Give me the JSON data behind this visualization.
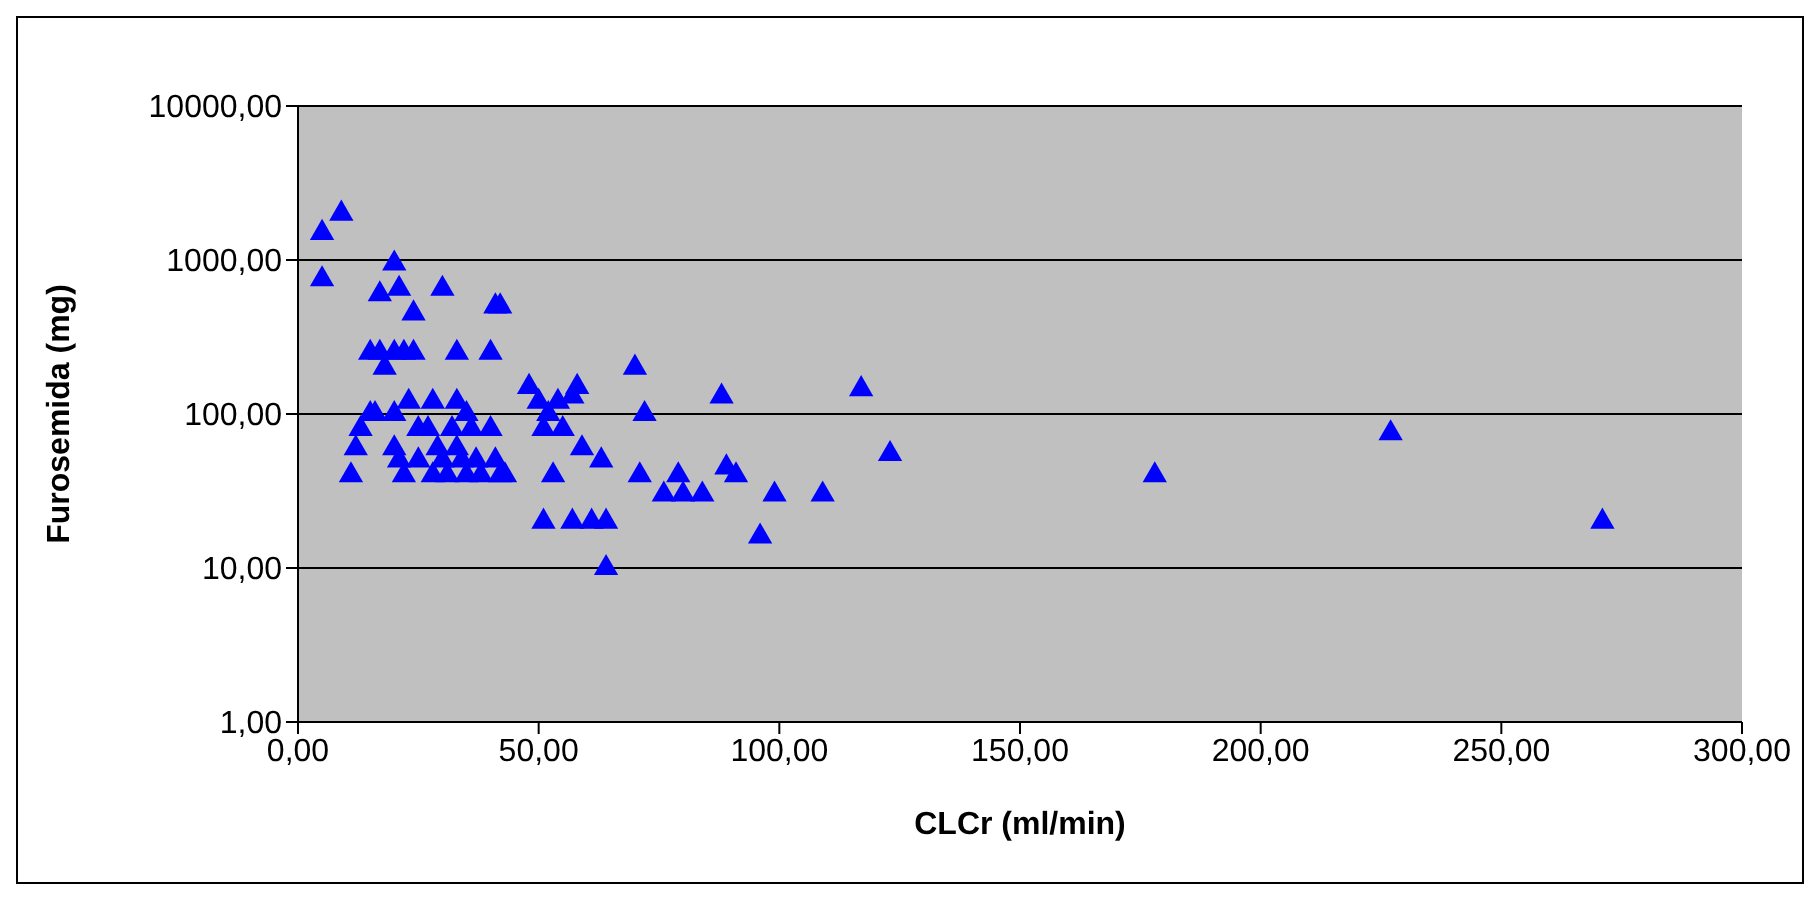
{
  "chart_data": {
    "type": "scatter",
    "xlabel": "CLCr (ml/min)",
    "ylabel": "Furosemida (mg)",
    "log": "y",
    "grid": "y",
    "marker": "triangle",
    "xlim": [
      0,
      300
    ],
    "xticks": [
      {
        "value": 0,
        "label": "0,00"
      },
      {
        "value": 50,
        "label": "50,00"
      },
      {
        "value": 100,
        "label": "100,00"
      },
      {
        "value": 150,
        "label": "150,00"
      },
      {
        "value": 200,
        "label": "200,00"
      },
      {
        "value": 250,
        "label": "250,00"
      },
      {
        "value": 300,
        "label": "300,00"
      }
    ],
    "ylim": [
      1,
      10000
    ],
    "yticks": [
      {
        "value": 1,
        "label": "1,00"
      },
      {
        "value": 10,
        "label": "10,00"
      },
      {
        "value": 100,
        "label": "100,00"
      },
      {
        "value": 1000,
        "label": "1000,00"
      },
      {
        "value": 10000,
        "label": "10000,00"
      }
    ],
    "series": [
      {
        "color": "#0000ff",
        "x": [
          5,
          5,
          9,
          20,
          21,
          17,
          30,
          24,
          42,
          41,
          15,
          17,
          18,
          20,
          22,
          24,
          33,
          40,
          15,
          13,
          12,
          11,
          16,
          20,
          23,
          28,
          33,
          35,
          20,
          21,
          22,
          25,
          27,
          29,
          30,
          31,
          32,
          33,
          34,
          35,
          36,
          37,
          38,
          40,
          42,
          41,
          43,
          28,
          25,
          48,
          50,
          52,
          54,
          55,
          51,
          57,
          58,
          53,
          59,
          51,
          57,
          61,
          64,
          63,
          64,
          70,
          72,
          71,
          76,
          79,
          80,
          84,
          88,
          89,
          91,
          96,
          99,
          109,
          117,
          123,
          178,
          227,
          271
        ],
        "values": [
          1500,
          750,
          2000,
          950,
          650,
          600,
          650,
          450,
          500,
          500,
          250,
          250,
          200,
          250,
          250,
          250,
          250,
          250,
          100,
          80,
          60,
          40,
          100,
          100,
          120,
          120,
          120,
          100,
          60,
          50,
          40,
          50,
          80,
          60,
          50,
          40,
          80,
          60,
          50,
          40,
          80,
          50,
          40,
          80,
          40,
          50,
          40,
          40,
          80,
          150,
          120,
          100,
          120,
          80,
          80,
          130,
          150,
          40,
          60,
          20,
          20,
          20,
          20,
          50,
          10,
          200,
          100,
          40,
          30,
          40,
          30,
          30,
          130,
          45,
          40,
          16,
          30,
          30,
          145,
          55,
          40,
          75,
          20
        ]
      }
    ]
  }
}
